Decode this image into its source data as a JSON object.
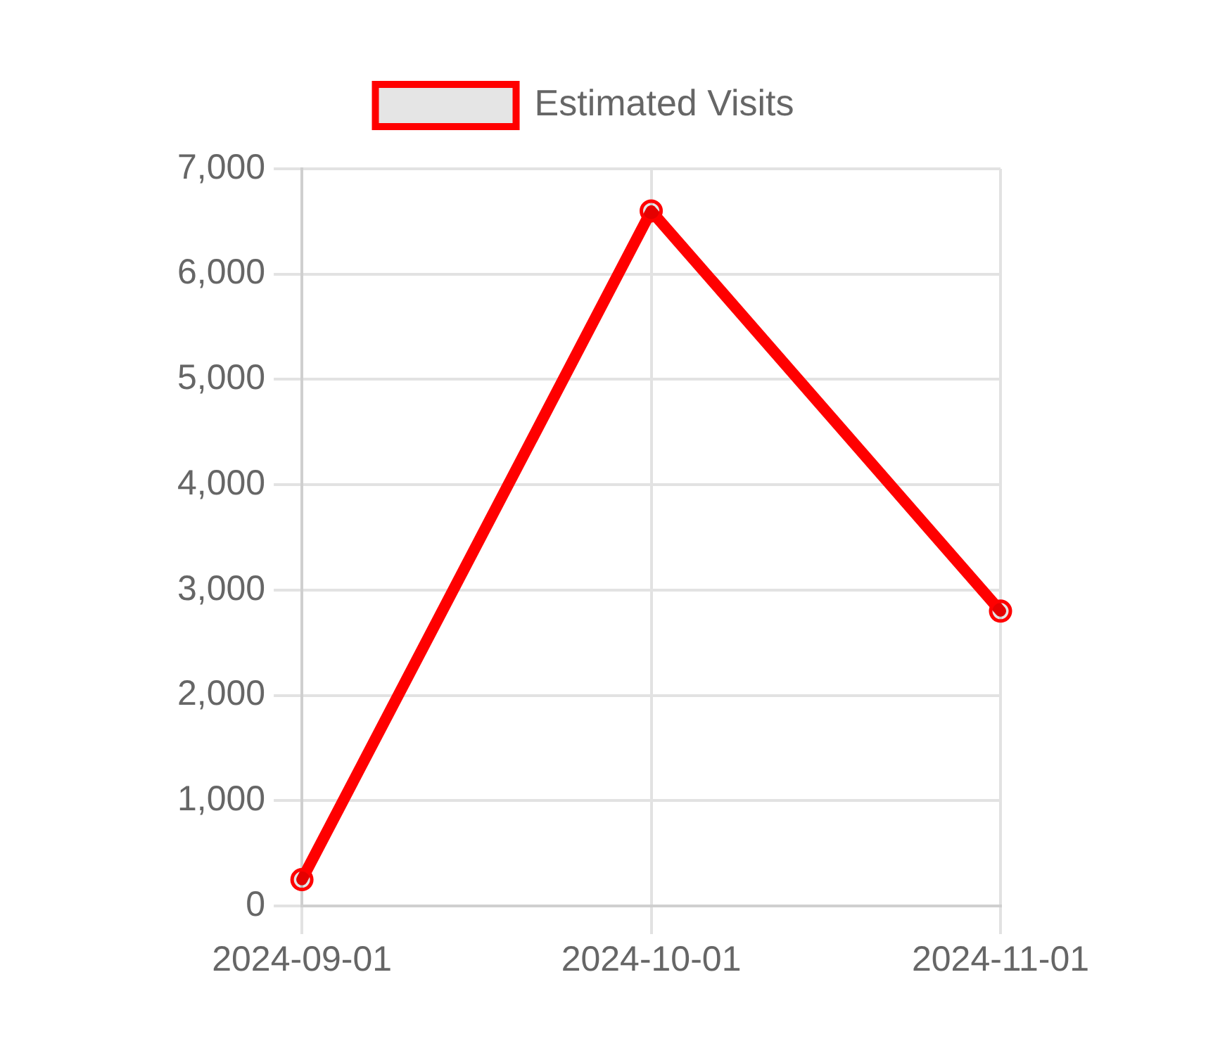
{
  "chart_data": {
    "type": "line",
    "categories": [
      "2024-09-01",
      "2024-10-01",
      "2024-11-01"
    ],
    "series": [
      {
        "name": "Estimated Visits",
        "color": "#ff0000",
        "values": [
          250,
          6600,
          2800
        ]
      }
    ],
    "ylim": [
      0,
      7000
    ],
    "yticks": [
      {
        "value": 0,
        "label": "0"
      },
      {
        "value": 1000,
        "label": "1,000"
      },
      {
        "value": 2000,
        "label": "2,000"
      },
      {
        "value": 3000,
        "label": "3,000"
      },
      {
        "value": 4000,
        "label": "4,000"
      },
      {
        "value": 5000,
        "label": "5,000"
      },
      {
        "value": 6000,
        "label": "6,000"
      },
      {
        "value": 7000,
        "label": "7,000"
      }
    ],
    "grid": true,
    "legend": "top",
    "marker": "circle"
  }
}
